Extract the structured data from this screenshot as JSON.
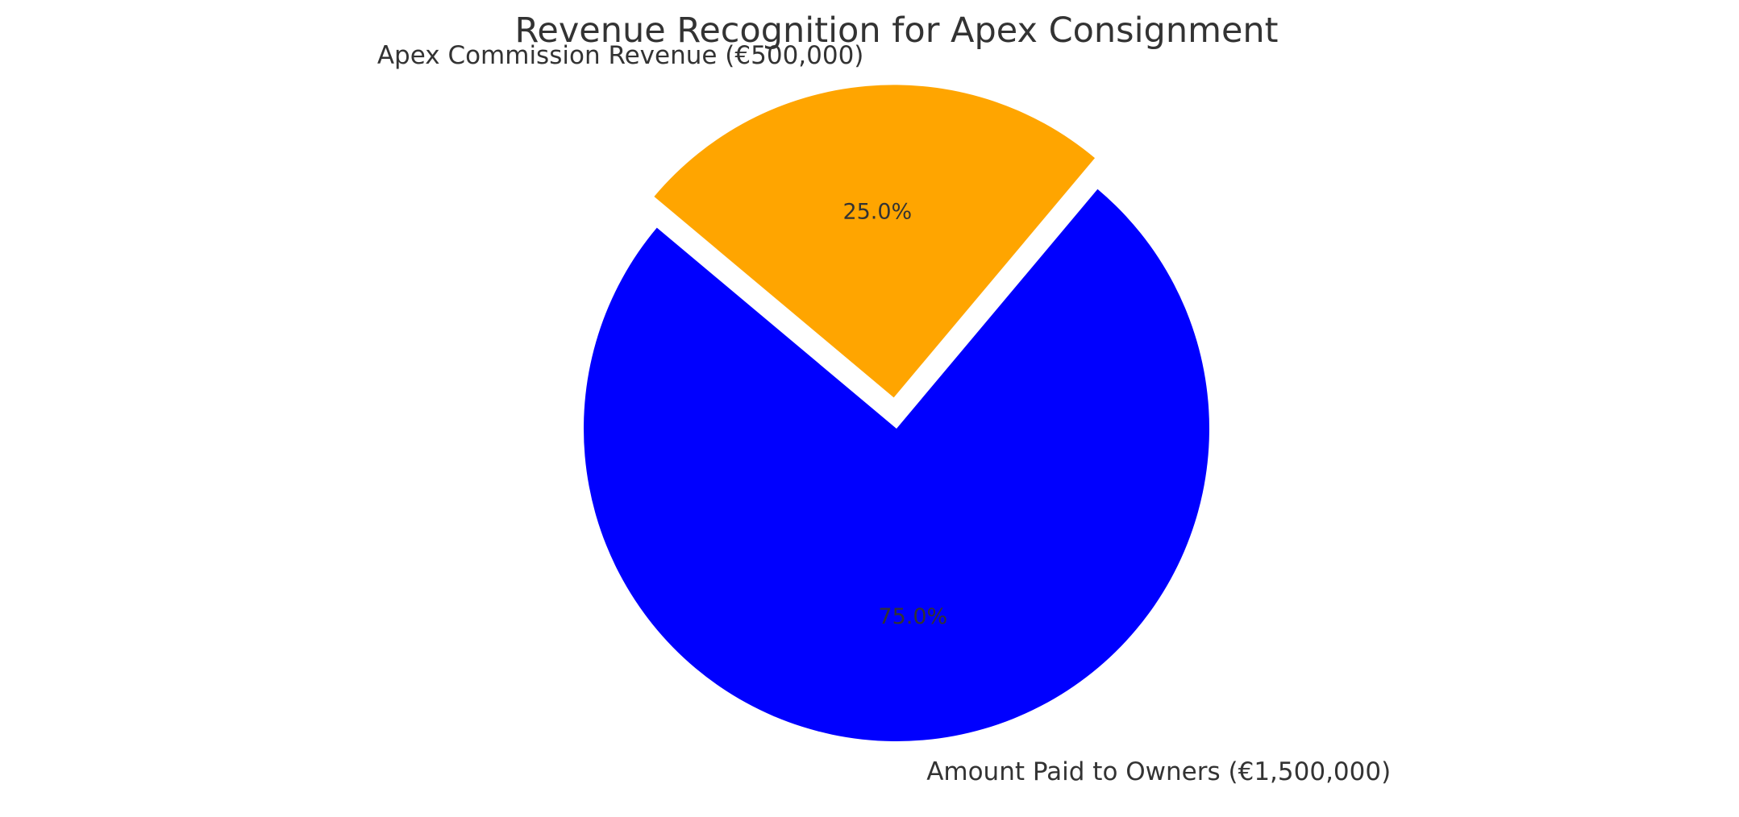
{
  "chart_data": {
    "type": "pie",
    "title": "Revenue Recognition for Apex Consignment",
    "slices": [
      {
        "label": "Amount Paid to Owners (€1,500,000)",
        "value": 1500000,
        "percent_label": "75.0%",
        "color": "#0000ff",
        "exploded": false
      },
      {
        "label": "Apex Commission Revenue (€500,000)",
        "value": 500000,
        "percent_label": "25.0%",
        "color": "#ffa500",
        "exploded": true
      }
    ]
  }
}
